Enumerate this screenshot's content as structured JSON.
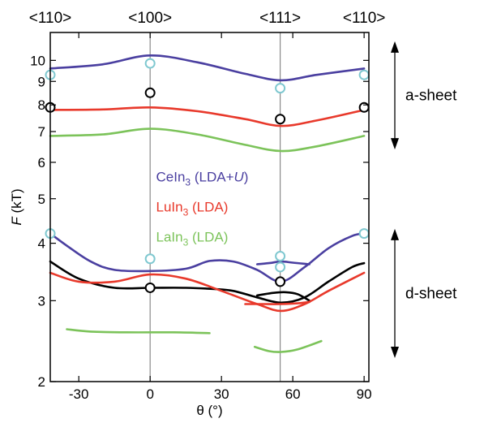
{
  "chart_data": {
    "type": "line",
    "title": "",
    "xlabel": "θ (°)",
    "ylabel_italic": "F",
    "ylabel_unit": " (kT)",
    "y_scale": "log",
    "xlim": [
      -42,
      92
    ],
    "ylim": [
      2,
      11.5
    ],
    "x_ticks": [
      -30,
      0,
      30,
      60,
      90
    ],
    "y_ticks": [
      2,
      3,
      4,
      5,
      6,
      7,
      8,
      9,
      10
    ],
    "top_labels": [
      {
        "text": "<110>",
        "x": -42
      },
      {
        "text": "<100>",
        "x": 0
      },
      {
        "text": "<111>",
        "x": 54.7
      },
      {
        "text": "<110>",
        "x": 90
      }
    ],
    "vertical_lines_x": [
      0,
      54.7
    ],
    "legend": [
      {
        "name": "CeIn",
        "sub": "3",
        "suffix_pre": " (LDA+",
        "suffix_italic": "U",
        "suffix_post": ")",
        "color": "#4a3fa0"
      },
      {
        "name": "LuIn",
        "sub": "3",
        "suffix_pre": " (LDA)",
        "suffix_italic": "",
        "suffix_post": "",
        "color": "#e8392b"
      },
      {
        "name": "LaIn",
        "sub": "3",
        "suffix_pre": " (LDA)",
        "suffix_italic": "",
        "suffix_post": "",
        "color": "#7cc35a"
      }
    ],
    "series": [
      {
        "color": "#4a3fa0",
        "points": [
          [
            -42,
            9.6
          ],
          [
            -20,
            9.8
          ],
          [
            0,
            10.25
          ],
          [
            20,
            9.9
          ],
          [
            40,
            9.35
          ],
          [
            55,
            9.05
          ],
          [
            70,
            9.3
          ],
          [
            90,
            9.6
          ]
        ]
      },
      {
        "color": "#e8392b",
        "points": [
          [
            -42,
            7.8
          ],
          [
            -20,
            7.82
          ],
          [
            0,
            7.9
          ],
          [
            20,
            7.75
          ],
          [
            40,
            7.45
          ],
          [
            55,
            7.2
          ],
          [
            70,
            7.4
          ],
          [
            90,
            7.8
          ]
        ]
      },
      {
        "color": "#7cc35a",
        "points": [
          [
            -42,
            6.85
          ],
          [
            -20,
            6.9
          ],
          [
            0,
            7.1
          ],
          [
            20,
            6.9
          ],
          [
            40,
            6.55
          ],
          [
            55,
            6.35
          ],
          [
            70,
            6.5
          ],
          [
            90,
            6.85
          ]
        ]
      },
      {
        "color": "#4a3fa0",
        "points": [
          [
            -42,
            4.2
          ],
          [
            -35,
            3.95
          ],
          [
            -25,
            3.65
          ],
          [
            -15,
            3.5
          ],
          [
            0,
            3.48
          ],
          [
            15,
            3.52
          ],
          [
            25,
            3.66
          ],
          [
            35,
            3.65
          ],
          [
            45,
            3.5
          ],
          [
            55,
            3.3
          ],
          [
            65,
            3.55
          ],
          [
            75,
            3.9
          ],
          [
            85,
            4.15
          ],
          [
            90,
            4.2
          ]
        ]
      },
      {
        "color": "#4a3fa0",
        "points": [
          [
            45,
            3.6
          ],
          [
            50,
            3.62
          ],
          [
            55,
            3.65
          ],
          [
            60,
            3.63
          ],
          [
            67,
            3.6
          ]
        ]
      },
      {
        "color": "#000000",
        "points": [
          [
            -42,
            3.65
          ],
          [
            -30,
            3.35
          ],
          [
            -15,
            3.2
          ],
          [
            0,
            3.2
          ],
          [
            15,
            3.2
          ],
          [
            27,
            3.18
          ],
          [
            35,
            3.15
          ],
          [
            45,
            3.05
          ],
          [
            55,
            2.97
          ],
          [
            65,
            3.05
          ],
          [
            75,
            3.3
          ],
          [
            85,
            3.55
          ],
          [
            90,
            3.62
          ]
        ]
      },
      {
        "color": "#000000",
        "points": [
          [
            45,
            3.08
          ],
          [
            52,
            3.12
          ],
          [
            57,
            3.13
          ],
          [
            62,
            3.1
          ],
          [
            67,
            3.0
          ]
        ]
      },
      {
        "color": "#e8392b",
        "points": [
          [
            -42,
            3.45
          ],
          [
            -30,
            3.3
          ],
          [
            -15,
            3.3
          ],
          [
            0,
            3.42
          ],
          [
            15,
            3.35
          ],
          [
            30,
            3.15
          ],
          [
            45,
            2.95
          ],
          [
            55,
            2.85
          ],
          [
            65,
            2.95
          ],
          [
            75,
            3.15
          ],
          [
            90,
            3.45
          ]
        ]
      },
      {
        "color": "#e8392b",
        "points": [
          [
            40,
            2.95
          ],
          [
            48,
            2.95
          ],
          [
            55,
            2.95
          ],
          [
            62,
            2.96
          ],
          [
            67,
            2.98
          ]
        ]
      },
      {
        "color": "#7cc35a",
        "points": [
          [
            -35,
            2.6
          ],
          [
            -25,
            2.57
          ],
          [
            -10,
            2.56
          ],
          [
            10,
            2.56
          ],
          [
            25,
            2.55
          ]
        ]
      },
      {
        "color": "#7cc35a",
        "points": [
          [
            44,
            2.38
          ],
          [
            50,
            2.33
          ],
          [
            55,
            2.32
          ],
          [
            62,
            2.35
          ],
          [
            72,
            2.45
          ]
        ]
      }
    ],
    "markers": [
      {
        "x": -42,
        "y": 9.3,
        "color": "#7fc8d0"
      },
      {
        "x": 0,
        "y": 9.85,
        "color": "#7fc8d0"
      },
      {
        "x": 54.7,
        "y": 8.7,
        "color": "#7fc8d0"
      },
      {
        "x": 90,
        "y": 9.3,
        "color": "#7fc8d0"
      },
      {
        "x": 0,
        "y": 8.5,
        "color": "#000000"
      },
      {
        "x": -42,
        "y": 7.9,
        "color": "#000000"
      },
      {
        "x": 54.7,
        "y": 7.45,
        "color": "#000000"
      },
      {
        "x": 90,
        "y": 7.9,
        "color": "#000000"
      },
      {
        "x": -42,
        "y": 4.2,
        "color": "#7fc8d0"
      },
      {
        "x": 90,
        "y": 4.2,
        "color": "#7fc8d0"
      },
      {
        "x": 0,
        "y": 3.7,
        "color": "#7fc8d0"
      },
      {
        "x": 54.7,
        "y": 3.75,
        "color": "#7fc8d0"
      },
      {
        "x": 54.7,
        "y": 3.55,
        "color": "#7fc8d0"
      },
      {
        "x": 54.7,
        "y": 3.3,
        "color": "#000000"
      },
      {
        "x": 0,
        "y": 3.2,
        "color": "#000000"
      }
    ],
    "sheet_annotations": [
      {
        "text": "a-sheet",
        "y_from": 11.0,
        "y_to": 6.4
      },
      {
        "text": "d-sheet",
        "y_from": 4.3,
        "y_to": 2.25
      }
    ]
  }
}
